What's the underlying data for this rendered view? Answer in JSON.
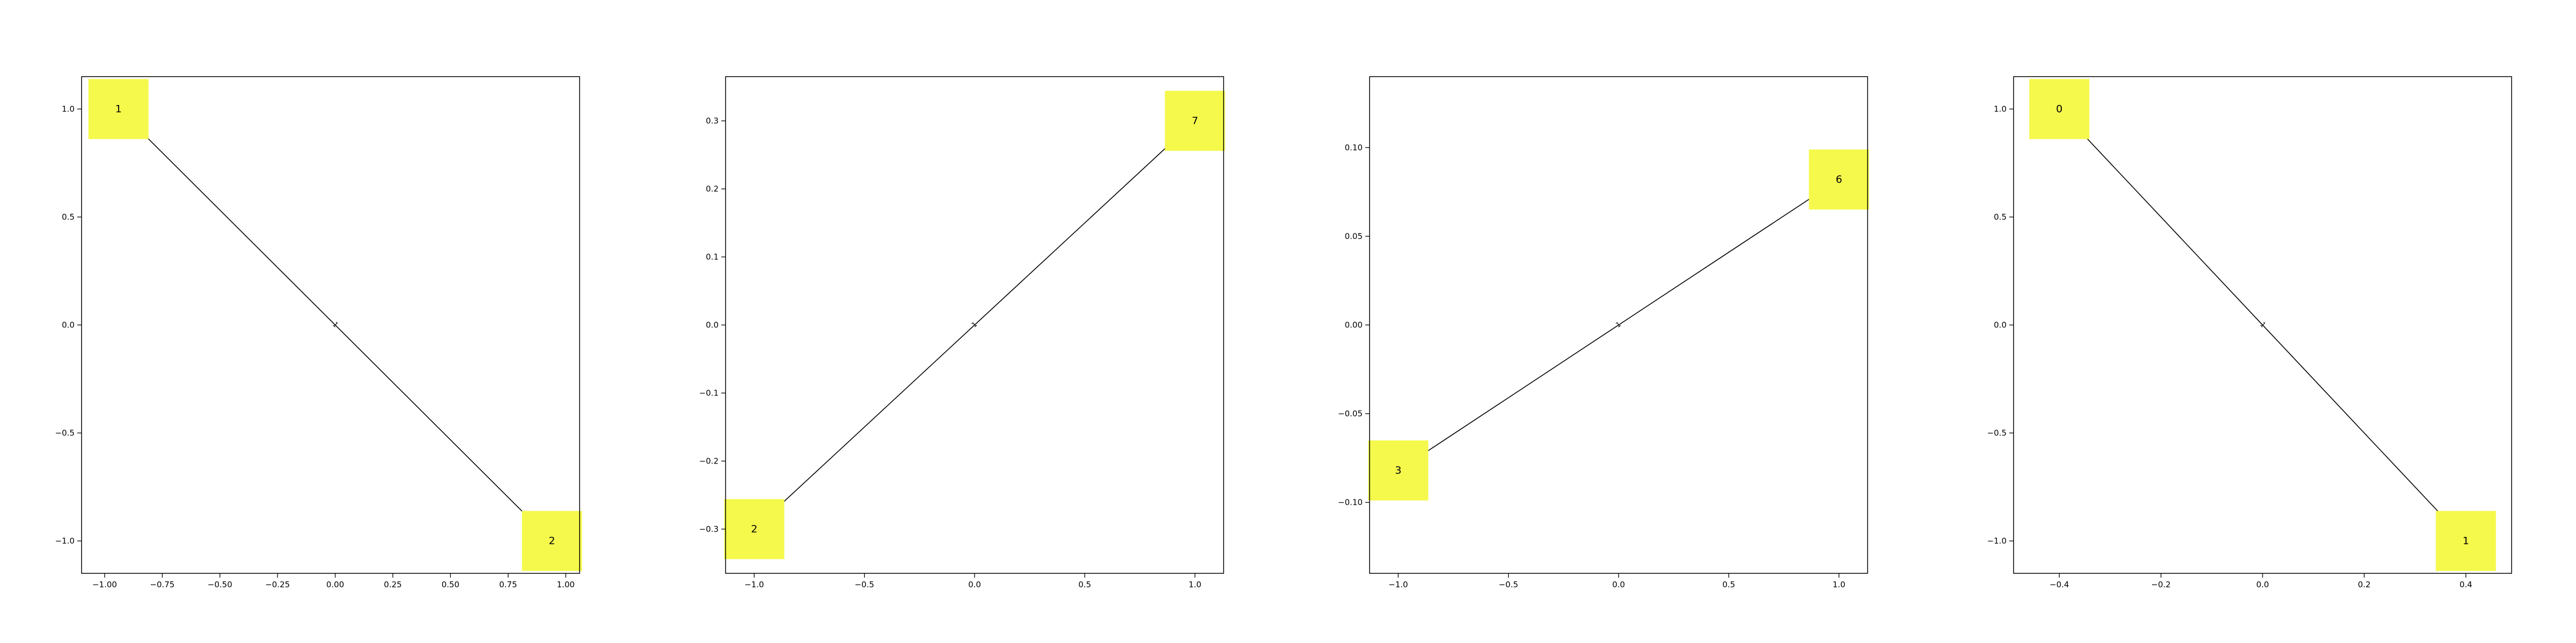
{
  "chart_data": [
    {
      "type": "network",
      "xlim": [
        -1.1,
        1.06
      ],
      "ylim": [
        -1.15,
        1.15
      ],
      "xticks": [
        -1.0,
        -0.75,
        -0.5,
        -0.25,
        0.0,
        0.25,
        0.5,
        0.75,
        1.0
      ],
      "xtick_labels": [
        "−1.00",
        "−0.75",
        "−0.50",
        "−0.25",
        "0.00",
        "0.25",
        "0.50",
        "0.75",
        "1.00"
      ],
      "yticks": [
        1.0,
        0.5,
        0.0,
        -0.5,
        -1.0
      ],
      "ytick_labels": [
        "1.0",
        "0.5",
        "0.0",
        "−0.5",
        "−1.0"
      ],
      "nodes": [
        {
          "label": "1",
          "x": -0.94,
          "y": 1.0
        },
        {
          "label": "2",
          "x": 0.94,
          "y": -1.0
        }
      ],
      "edges": [
        {
          "from": 0,
          "to": 1,
          "label": "1"
        }
      ]
    },
    {
      "type": "network",
      "xlim": [
        -1.13,
        1.13
      ],
      "ylim": [
        -0.365,
        0.365
      ],
      "xticks": [
        -1.0,
        -0.5,
        0.0,
        0.5,
        1.0
      ],
      "xtick_labels": [
        "−1.0",
        "−0.5",
        "0.0",
        "0.5",
        "1.0"
      ],
      "yticks": [
        0.3,
        0.2,
        0.1,
        0.0,
        -0.1,
        -0.2,
        -0.3
      ],
      "ytick_labels": [
        "0.3",
        "0.2",
        "0.1",
        "0.0",
        "−0.1",
        "−0.2",
        "−0.3"
      ],
      "nodes": [
        {
          "label": "2",
          "x": -1.0,
          "y": -0.3
        },
        {
          "label": "7",
          "x": 1.0,
          "y": 0.3
        }
      ],
      "edges": [
        {
          "from": 0,
          "to": 1,
          "label": "1"
        }
      ]
    },
    {
      "type": "network",
      "xlim": [
        -1.13,
        1.13
      ],
      "ylim": [
        -0.14,
        0.14
      ],
      "xticks": [
        -1.0,
        -0.5,
        0.0,
        0.5,
        1.0
      ],
      "xtick_labels": [
        "−1.0",
        "−0.5",
        "0.0",
        "0.5",
        "1.0"
      ],
      "yticks": [
        0.1,
        0.05,
        0.0,
        -0.05,
        -0.1
      ],
      "ytick_labels": [
        "0.10",
        "0.05",
        "0.00",
        "−0.05",
        "−0.10"
      ],
      "nodes": [
        {
          "label": "3",
          "x": -1.0,
          "y": -0.082
        },
        {
          "label": "6",
          "x": 1.0,
          "y": 0.082
        }
      ],
      "edges": [
        {
          "from": 0,
          "to": 1,
          "label": "1"
        }
      ]
    },
    {
      "type": "network",
      "xlim": [
        -0.49,
        0.49
      ],
      "ylim": [
        -1.15,
        1.15
      ],
      "xticks": [
        -0.4,
        -0.2,
        0.0,
        0.2,
        0.4
      ],
      "xtick_labels": [
        "−0.4",
        "−0.2",
        "0.0",
        "0.2",
        "0.4"
      ],
      "yticks": [
        1.0,
        0.5,
        0.0,
        -0.5,
        -1.0
      ],
      "ytick_labels": [
        "1.0",
        "0.5",
        "0.0",
        "−0.5",
        "−1.0"
      ],
      "nodes": [
        {
          "label": "0",
          "x": -0.4,
          "y": 1.0
        },
        {
          "label": "1",
          "x": 0.4,
          "y": -1.0
        }
      ],
      "edges": [
        {
          "from": 0,
          "to": 1,
          "label": "1"
        }
      ]
    }
  ],
  "style": {
    "node_fill": "#f4f94c",
    "edge_color": "#000000",
    "axis_color": "#000000",
    "background": "#ffffff"
  }
}
